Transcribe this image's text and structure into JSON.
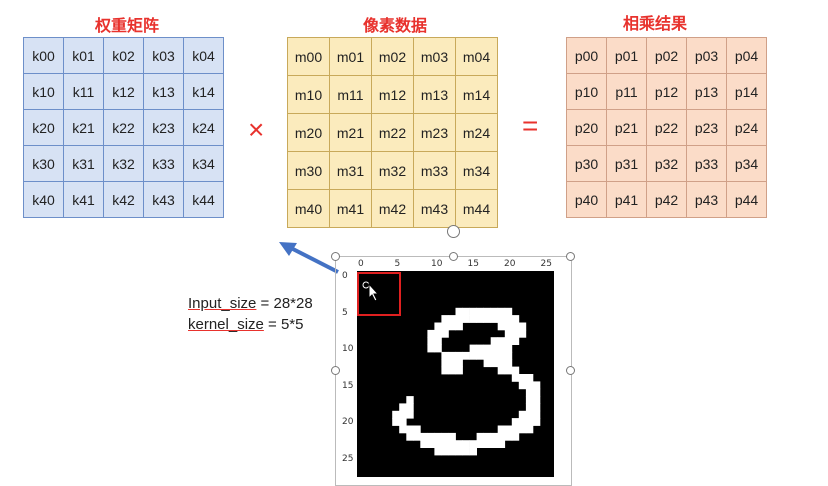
{
  "titles": {
    "kernel": "权重矩阵",
    "image": "像素数据",
    "result": "相乘结果"
  },
  "operators": {
    "multiply": "×",
    "equals": "="
  },
  "kernel": [
    [
      "k00",
      "k01",
      "k02",
      "k03",
      "k04"
    ],
    [
      "k10",
      "k11",
      "k12",
      "k13",
      "k14"
    ],
    [
      "k20",
      "k21",
      "k22",
      "k23",
      "k24"
    ],
    [
      "k30",
      "k31",
      "k32",
      "k33",
      "k34"
    ],
    [
      "k40",
      "k41",
      "k42",
      "k43",
      "k44"
    ]
  ],
  "pixels": [
    [
      "m00",
      "m01",
      "m02",
      "m03",
      "m04"
    ],
    [
      "m10",
      "m11",
      "m12",
      "m13",
      "m14"
    ],
    [
      "m20",
      "m21",
      "m22",
      "m23",
      "m24"
    ],
    [
      "m30",
      "m31",
      "m32",
      "m33",
      "m34"
    ],
    [
      "m40",
      "m41",
      "m42",
      "m43",
      "m44"
    ]
  ],
  "result": [
    [
      "p00",
      "p01",
      "p02",
      "p03",
      "p04"
    ],
    [
      "p10",
      "p11",
      "p12",
      "p13",
      "p14"
    ],
    [
      "p20",
      "p21",
      "p22",
      "p23",
      "p24"
    ],
    [
      "p30",
      "p31",
      "p32",
      "p33",
      "p34"
    ],
    [
      "p40",
      "p41",
      "p42",
      "p43",
      "p44"
    ]
  ],
  "info": {
    "input_key": "Input_size",
    "input_val": " = 28*28",
    "kernel_key": "kernel_size",
    "kernel_val": " = 5*5"
  },
  "plot": {
    "x_ticks": [
      "0",
      "5",
      "10",
      "15",
      "20",
      "25"
    ],
    "y_ticks": [
      "0",
      "5",
      "10",
      "15",
      "20",
      "25"
    ],
    "colors": {
      "background": "#000000",
      "digit": "#ffffff",
      "highlight": "#e02020",
      "arrow": "#4472c4"
    }
  }
}
